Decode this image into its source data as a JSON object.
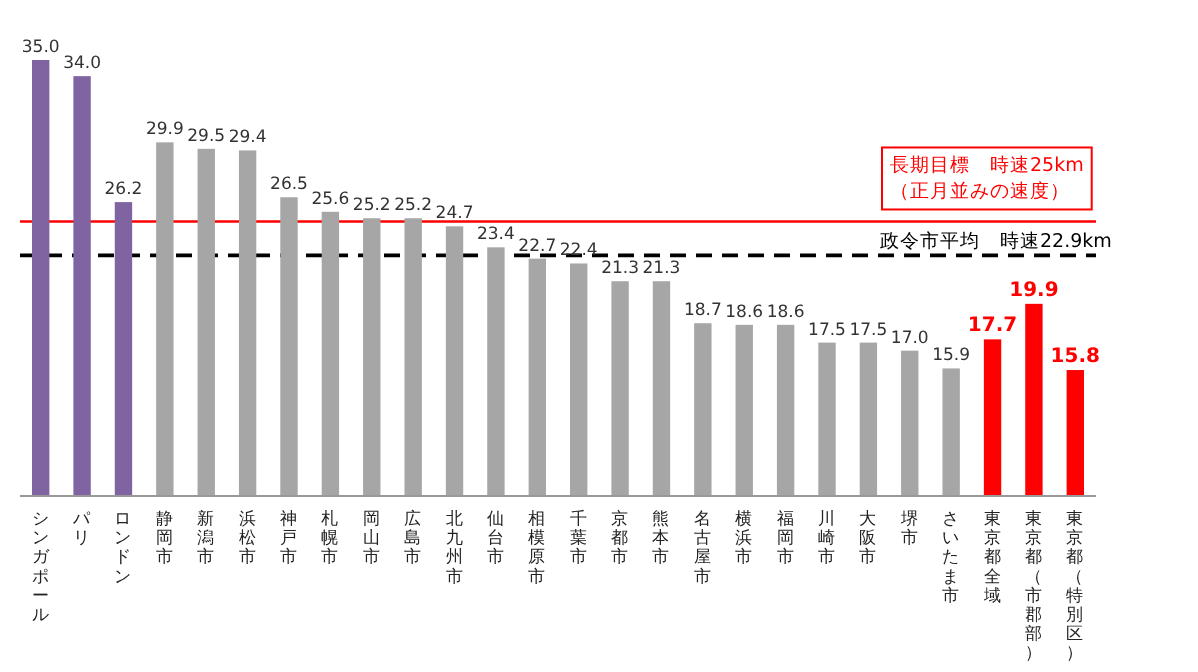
{
  "chart_data": {
    "type": "bar",
    "categories": [
      "シンガポール",
      "パリ",
      "ロンドン",
      "静岡市",
      "新潟市",
      "浜松市",
      "神戸市",
      "札幌市",
      "岡山市",
      "広島市",
      "北九州市",
      "仙台市",
      "相模原市",
      "千葉市",
      "京都市",
      "熊本市",
      "名古屋市",
      "横浜市",
      "福岡市",
      "川崎市",
      "大阪市",
      "堺市",
      "さいたま市",
      "東京都全域",
      "東京都（市郡部）",
      "東京都（特別区）"
    ],
    "values": [
      35.0,
      34.0,
      26.2,
      29.9,
      29.5,
      29.4,
      26.5,
      25.6,
      25.2,
      25.2,
      24.7,
      23.4,
      22.7,
      22.4,
      21.3,
      21.3,
      18.7,
      18.6,
      18.6,
      17.5,
      17.5,
      17.0,
      15.9,
      17.7,
      19.9,
      15.8
    ],
    "value_labels": [
      "35.0",
      "34.0",
      "26.2",
      "29.9",
      "29.5",
      "29.4",
      "26.5",
      "25.6",
      "25.2",
      "25.2",
      "24.7",
      "23.4",
      "22.7",
      "22.4",
      "21.3",
      "21.3",
      "18.7",
      "18.6",
      "18.6",
      "17.5",
      "17.5",
      "17.0",
      "15.9",
      "17.7",
      "19.9",
      "15.8"
    ],
    "colors": [
      "#8064a2",
      "#8064a2",
      "#8064a2",
      "#a6a6a6",
      "#a6a6a6",
      "#a6a6a6",
      "#a6a6a6",
      "#a6a6a6",
      "#a6a6a6",
      "#a6a6a6",
      "#a6a6a6",
      "#a6a6a6",
      "#a6a6a6",
      "#a6a6a6",
      "#a6a6a6",
      "#a6a6a6",
      "#a6a6a6",
      "#a6a6a6",
      "#a6a6a6",
      "#a6a6a6",
      "#a6a6a6",
      "#a6a6a6",
      "#a6a6a6",
      "#ff0000",
      "#ff0000",
      "#ff0000"
    ],
    "ylim": [
      8,
      35
    ],
    "ref_lines": [
      {
        "axis": "y",
        "value": 25,
        "label": "長期目標　時速25km\n（正月並みの速度）",
        "color": "#ff0000",
        "line_style": "solid"
      },
      {
        "axis": "y",
        "value": 22.9,
        "label": "政令市平均　時速22.9km",
        "color": "#000000",
        "line_style": "dashed"
      }
    ]
  }
}
